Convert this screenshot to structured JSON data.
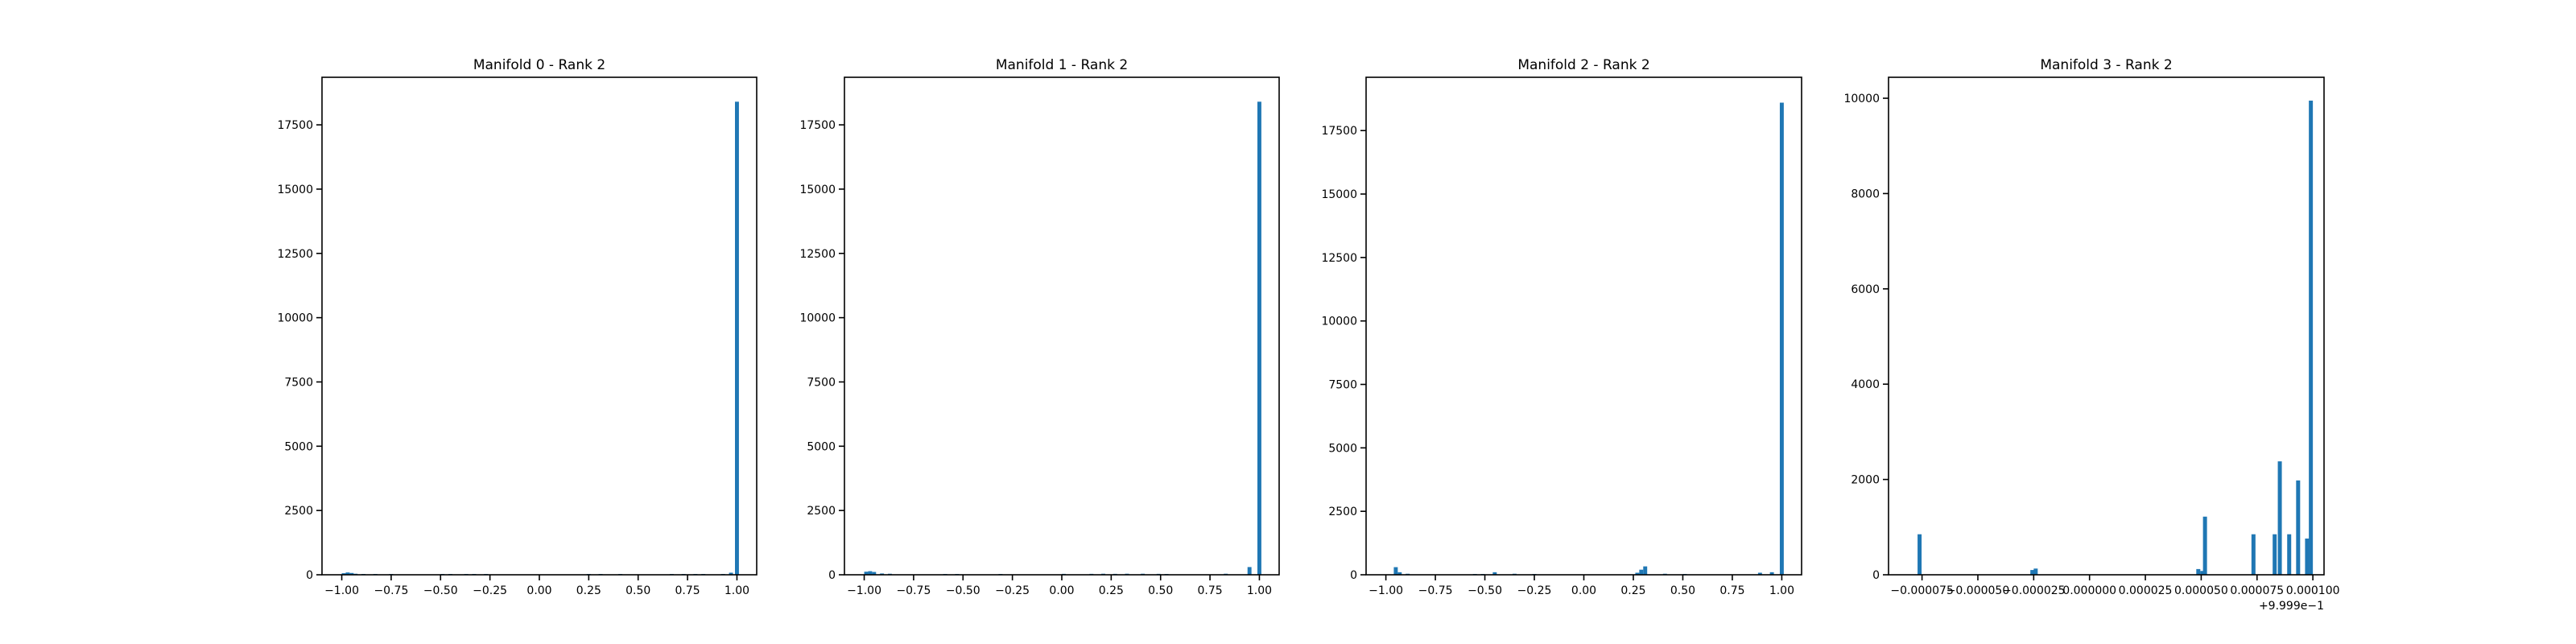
{
  "bar_color": "#1f77b4",
  "chart_data": [
    {
      "type": "bar",
      "title": "Manifold 0 - Rank 2",
      "xlim": [
        -1.1,
        1.1
      ],
      "ylim": [
        0,
        19350
      ],
      "xticks": [
        -1.0,
        -0.75,
        -0.5,
        -0.25,
        0.0,
        0.25,
        0.5,
        0.75,
        1.0
      ],
      "xtick_labels": [
        "−1.00",
        "−0.75",
        "−0.50",
        "−0.25",
        "0.00",
        "0.25",
        "0.50",
        "0.75",
        "1.00"
      ],
      "yticks": [
        0,
        2500,
        5000,
        7500,
        10000,
        12500,
        15000,
        17500
      ],
      "ytick_labels": [
        "0",
        "2500",
        "5000",
        "7500",
        "10000",
        "12500",
        "15000",
        "17500"
      ],
      "offset_label": "",
      "bin_width": 0.02,
      "bins": [
        {
          "x": -1.0,
          "y": 60
        },
        {
          "x": -0.98,
          "y": 90
        },
        {
          "x": -0.96,
          "y": 70
        },
        {
          "x": -0.94,
          "y": 40
        },
        {
          "x": -0.9,
          "y": 30
        },
        {
          "x": -0.84,
          "y": 30
        },
        {
          "x": -0.76,
          "y": 30
        },
        {
          "x": -0.5,
          "y": 25
        },
        {
          "x": -0.46,
          "y": 25
        },
        {
          "x": -0.38,
          "y": 30
        },
        {
          "x": -0.34,
          "y": 25
        },
        {
          "x": -0.28,
          "y": 25
        },
        {
          "x": 0.24,
          "y": 25
        },
        {
          "x": 0.3,
          "y": 20
        },
        {
          "x": 0.4,
          "y": 20
        },
        {
          "x": 0.66,
          "y": 20
        },
        {
          "x": 0.72,
          "y": 25
        },
        {
          "x": 0.78,
          "y": 20
        },
        {
          "x": 0.82,
          "y": 25
        },
        {
          "x": 0.92,
          "y": 30
        },
        {
          "x": 0.96,
          "y": 80
        },
        {
          "x": 0.99,
          "y": 18400
        }
      ]
    },
    {
      "type": "bar",
      "title": "Manifold 1 - Rank 2",
      "xlim": [
        -1.1,
        1.1
      ],
      "ylim": [
        0,
        19350
      ],
      "xticks": [
        -1.0,
        -0.75,
        -0.5,
        -0.25,
        0.0,
        0.25,
        0.5,
        0.75,
        1.0
      ],
      "xtick_labels": [
        "−1.00",
        "−0.75",
        "−0.50",
        "−0.25",
        "0.00",
        "0.25",
        "0.50",
        "0.75",
        "1.00"
      ],
      "yticks": [
        0,
        2500,
        5000,
        7500,
        10000,
        12500,
        15000,
        17500
      ],
      "ytick_labels": [
        "0",
        "2500",
        "5000",
        "7500",
        "10000",
        "12500",
        "15000",
        "17500"
      ],
      "offset_label": "",
      "bin_width": 0.02,
      "bins": [
        {
          "x": -1.0,
          "y": 120
        },
        {
          "x": -0.98,
          "y": 140
        },
        {
          "x": -0.96,
          "y": 110
        },
        {
          "x": -0.92,
          "y": 50
        },
        {
          "x": -0.88,
          "y": 40
        },
        {
          "x": -0.6,
          "y": 25
        },
        {
          "x": -0.54,
          "y": 25
        },
        {
          "x": -0.32,
          "y": 30
        },
        {
          "x": 0.0,
          "y": 35
        },
        {
          "x": 0.14,
          "y": 35
        },
        {
          "x": 0.2,
          "y": 40
        },
        {
          "x": 0.26,
          "y": 35
        },
        {
          "x": 0.32,
          "y": 40
        },
        {
          "x": 0.4,
          "y": 40
        },
        {
          "x": 0.48,
          "y": 35
        },
        {
          "x": 0.52,
          "y": 30
        },
        {
          "x": 0.82,
          "y": 40
        },
        {
          "x": 0.94,
          "y": 300
        },
        {
          "x": 0.99,
          "y": 18400
        }
      ]
    },
    {
      "type": "bar",
      "title": "Manifold 2 - Rank 2",
      "xlim": [
        -1.1,
        1.1
      ],
      "ylim": [
        0,
        19600
      ],
      "xticks": [
        -1.0,
        -0.75,
        -0.5,
        -0.25,
        0.0,
        0.25,
        0.5,
        0.75,
        1.0
      ],
      "xtick_labels": [
        "−1.00",
        "−0.75",
        "−0.50",
        "−0.25",
        "0.00",
        "0.25",
        "0.50",
        "0.75",
        "1.00"
      ],
      "yticks": [
        0,
        2500,
        5000,
        7500,
        10000,
        12500,
        15000,
        17500
      ],
      "ytick_labels": [
        "0",
        "2500",
        "5000",
        "7500",
        "10000",
        "12500",
        "15000",
        "17500"
      ],
      "offset_label": "",
      "bin_width": 0.02,
      "bins": [
        {
          "x": -0.96,
          "y": 300
        },
        {
          "x": -0.94,
          "y": 100
        },
        {
          "x": -0.9,
          "y": 40
        },
        {
          "x": -0.56,
          "y": 30
        },
        {
          "x": -0.52,
          "y": 30
        },
        {
          "x": -0.46,
          "y": 100
        },
        {
          "x": -0.36,
          "y": 40
        },
        {
          "x": -0.26,
          "y": 30
        },
        {
          "x": 0.26,
          "y": 80
        },
        {
          "x": 0.28,
          "y": 200
        },
        {
          "x": 0.3,
          "y": 330
        },
        {
          "x": 0.4,
          "y": 40
        },
        {
          "x": 0.5,
          "y": 30
        },
        {
          "x": 0.88,
          "y": 80
        },
        {
          "x": 0.94,
          "y": 100
        },
        {
          "x": 0.99,
          "y": 18600
        }
      ]
    },
    {
      "type": "bar",
      "title": "Manifold 3 - Rank 2",
      "xlim": [
        -9e-05,
        0.000105
      ],
      "ylim": [
        0,
        10440
      ],
      "xticks": [
        -7.5e-05,
        -5e-05,
        -2.5e-05,
        0.0,
        2.5e-05,
        5e-05,
        7.5e-05,
        0.0001
      ],
      "xtick_labels": [
        "−0.000075",
        "−0.000050",
        "−0.000025",
        "0.000000",
        "0.000025",
        "0.000050",
        "0.000075",
        "0.000100"
      ],
      "yticks": [
        0,
        2000,
        4000,
        6000,
        8000,
        10000
      ],
      "ytick_labels": [
        "0",
        "2000",
        "4000",
        "6000",
        "8000",
        "10000"
      ],
      "offset_label": "+9.999e−1",
      "bin_width": 1.8e-06,
      "bins": [
        {
          "x": -7.7e-05,
          "y": 850
        },
        {
          "x": -2.65e-05,
          "y": 100
        },
        {
          "x": -2.5e-05,
          "y": 130
        },
        {
          "x": 4.78e-05,
          "y": 120
        },
        {
          "x": 4.96e-05,
          "y": 80
        },
        {
          "x": 5.08e-05,
          "y": 1220
        },
        {
          "x": 7.25e-05,
          "y": 850
        },
        {
          "x": 8.2e-05,
          "y": 850
        },
        {
          "x": 8.43e-05,
          "y": 2380
        },
        {
          "x": 8.85e-05,
          "y": 850
        },
        {
          "x": 9.25e-05,
          "y": 1980
        },
        {
          "x": 9.65e-05,
          "y": 760
        },
        {
          "x": 9.82e-05,
          "y": 9950
        }
      ]
    }
  ]
}
